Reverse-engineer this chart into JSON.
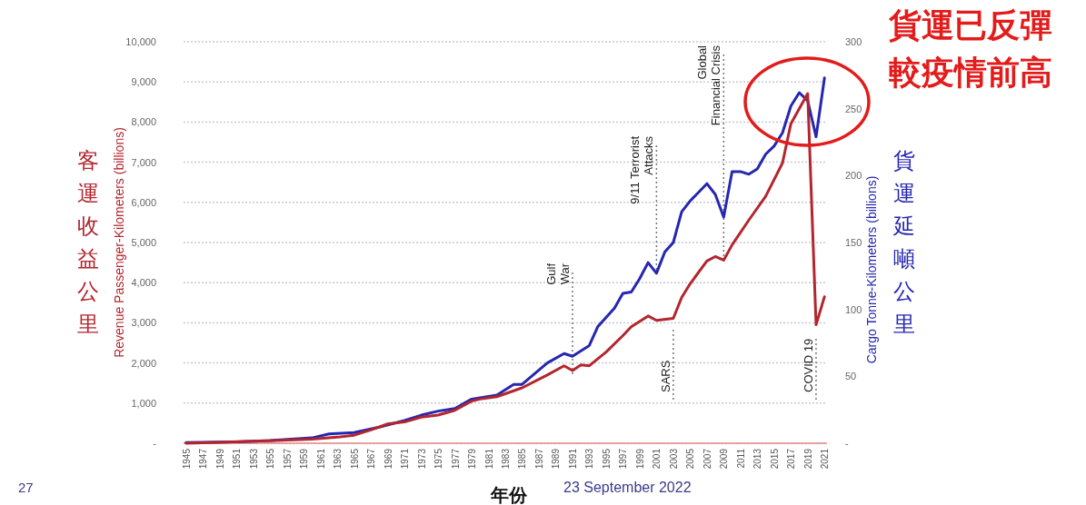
{
  "chart_data": {
    "type": "line",
    "xlabel": "年份",
    "ylabel": "Revenue Passenger-Kilometers (billions)",
    "y2label": "Cargo Tonne-Kilometers (billions)",
    "xlim": [
      1944.7,
      2021.3
    ],
    "xticks": [
      1945,
      1947,
      1949,
      1951,
      1953,
      1955,
      1957,
      1959,
      1961,
      1963,
      1965,
      1967,
      1969,
      1971,
      1973,
      1975,
      1977,
      1979,
      1981,
      1983,
      1985,
      1987,
      1989,
      1991,
      1993,
      1995,
      1997,
      1999,
      2001,
      2003,
      2005,
      2007,
      2009,
      2011,
      2013,
      2015,
      2017,
      2019,
      2021
    ],
    "ylim": [
      0,
      10000
    ],
    "yticks": [
      {
        "value": 0,
        "label": "-"
      },
      {
        "value": 1000,
        "label": "1,000"
      },
      {
        "value": 2000,
        "label": "2,000"
      },
      {
        "value": 3000,
        "label": "3,000"
      },
      {
        "value": 4000,
        "label": "4,000"
      },
      {
        "value": 5000,
        "label": "5,000"
      },
      {
        "value": 6000,
        "label": "6,000"
      },
      {
        "value": 7000,
        "label": "7,000"
      },
      {
        "value": 8000,
        "label": "8,000"
      },
      {
        "value": 9000,
        "label": "9,000"
      },
      {
        "value": 10000,
        "label": "10,000"
      }
    ],
    "y2lim": [
      0,
      300
    ],
    "y2ticks": [
      {
        "value": 0,
        "label": "-"
      },
      50,
      100,
      150,
      200,
      250,
      300
    ],
    "grid": "y",
    "line_style": "solid",
    "series": [
      {
        "color": "#b3262e",
        "x": [
          1945,
          1950,
          1955,
          1960,
          1963,
          1965,
          1967,
          1969,
          1971,
          1973,
          1975,
          1977,
          1979,
          1980,
          1982,
          1985,
          1988,
          1990,
          1991,
          1992,
          1993,
          1995,
          1997,
          1998,
          2000,
          2001,
          2003,
          2004,
          2005,
          2007,
          2008,
          2009,
          2010,
          2012,
          2014,
          2016,
          2017,
          2019,
          2020,
          2021
        ],
        "values": [
          0,
          30,
          60,
          100,
          150,
          200,
          330,
          480,
          530,
          650,
          700,
          820,
          1050,
          1100,
          1160,
          1380,
          1700,
          1930,
          1810,
          1950,
          1930,
          2270,
          2680,
          2900,
          3170,
          3060,
          3110,
          3630,
          3970,
          4540,
          4650,
          4560,
          4940,
          5560,
          6150,
          6980,
          7960,
          8710,
          2950,
          3650
        ]
      },
      {
        "color": "#2626b0",
        "axis": "y2",
        "x": [
          1945,
          1951,
          1955,
          1960,
          1962,
          1965,
          1968,
          1971,
          1973,
          1975,
          1977,
          1979,
          1982,
          1984,
          1985,
          1988,
          1990,
          1991,
          1993,
          1994,
          1996,
          1997,
          1998,
          1999,
          2000,
          2001,
          2002,
          2003,
          2004,
          2005,
          2007,
          2008,
          2009,
          2010,
          2011,
          2012,
          2013,
          2014,
          2015,
          2016,
          2017,
          2018,
          2019,
          2020,
          2021
        ],
        "values": [
          0.5,
          1,
          2,
          4,
          7,
          8,
          12,
          17,
          21,
          24,
          26,
          33,
          36,
          44,
          44,
          60,
          67,
          65,
          73,
          87,
          101,
          112,
          113,
          123,
          135,
          127,
          143,
          150,
          173,
          181,
          194,
          186,
          169,
          203,
          203,
          201,
          205,
          216,
          222,
          232,
          252,
          262,
          256,
          229,
          273
        ]
      }
    ],
    "ref_lines": [
      {
        "axis": "x",
        "value": 1991,
        "label": "Gulf\nWar",
        "line_style": "dotted",
        "color": "#777777"
      },
      {
        "axis": "x",
        "value": 2001,
        "label": "9/11 Terrorist\nAttacks",
        "line_style": "dotted",
        "color": "#777777"
      },
      {
        "axis": "x",
        "value": 2003,
        "label": "SARS",
        "line_style": "dotted",
        "color": "#777777"
      },
      {
        "axis": "x",
        "value": 2009,
        "label": "Global\nFinancial Crisis",
        "line_style": "dotted",
        "color": "#777777"
      },
      {
        "axis": "x",
        "value": 2020,
        "label": "COVID 19",
        "line_style": "dotted",
        "color": "#777777"
      }
    ],
    "annotations": [
      "貨運已反彈",
      "較疫情前高",
      "客運收益公里",
      "貨運延噸公里",
      "27",
      "23 September 2022"
    ]
  }
}
